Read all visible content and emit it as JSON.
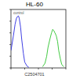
{
  "chart_data": {
    "type": "line",
    "title": "HL-60",
    "annotations": [
      "C2504701"
    ],
    "log": "x",
    "xlim": [
      1,
      10000
    ],
    "xticks": [
      1,
      10,
      100,
      1000,
      10000
    ],
    "ylim": [
      0,
      100
    ],
    "yticks": [
      0,
      20,
      40,
      60,
      80,
      100
    ],
    "tick_labels": false,
    "legend": "upper left",
    "series": [
      {
        "name": "control",
        "color": "#2a2ae0",
        "x": [
          1,
          1.5,
          2,
          2.5,
          3,
          3.5,
          4,
          5,
          6,
          8,
          10,
          15,
          20
        ],
        "values": [
          30,
          55,
          75,
          85,
          88,
          89,
          85,
          70,
          50,
          25,
          10,
          3,
          1
        ]
      },
      {
        "color": "#2ec42e",
        "x": [
          200,
          300,
          400,
          500,
          700,
          900,
          1100,
          1300,
          1600,
          2000,
          2500,
          3000,
          4000,
          5000,
          7000
        ],
        "values": [
          2,
          8,
          20,
          35,
          50,
          60,
          66,
          64,
          60,
          55,
          45,
          30,
          15,
          6,
          2
        ]
      }
    ]
  }
}
